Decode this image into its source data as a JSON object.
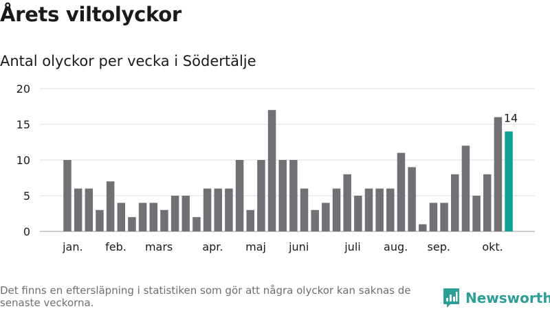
{
  "title": "Årets viltolyckor",
  "subtitle": "Antal olyckor per vecka i Södertälje",
  "footnote": "Det finns en eftersläpning i statistiken som gör att några olyckor kan saknas de senaste veckorna.",
  "brand": {
    "name": "Newsworthy",
    "icon": "newsworthy-logo-icon"
  },
  "colors": {
    "bar": "#737075",
    "highlight": "#0ea19a",
    "grid": "#dcdcdc",
    "brand": "#2b9e97",
    "text": "#1a1a1a"
  },
  "chart_data": {
    "type": "bar",
    "title": "Antal olyckor per vecka i Södertälje",
    "xlabel": "",
    "ylabel": "",
    "ylim": [
      0,
      20
    ],
    "yticks": [
      0,
      5,
      10,
      15,
      20
    ],
    "grid": true,
    "weeks": [
      1,
      2,
      3,
      4,
      5,
      6,
      7,
      8,
      9,
      10,
      11,
      12,
      13,
      14,
      15,
      16,
      17,
      18,
      19,
      20,
      21,
      22,
      23,
      24,
      25,
      26,
      27,
      28,
      29,
      30,
      31,
      32,
      33,
      34,
      35,
      36,
      37,
      38,
      39,
      40,
      41,
      42
    ],
    "values": [
      10,
      6,
      6,
      3,
      7,
      4,
      2,
      4,
      4,
      3,
      5,
      5,
      2,
      6,
      6,
      6,
      10,
      3,
      10,
      17,
      10,
      10,
      6,
      3,
      4,
      6,
      8,
      5,
      6,
      6,
      6,
      11,
      9,
      1,
      4,
      4,
      8,
      12,
      5,
      8,
      16,
      14
    ],
    "highlight_index": 41,
    "highlight_label": "14",
    "month_labels": [
      {
        "label": "jan.",
        "week": 1.5
      },
      {
        "label": "feb.",
        "week": 5.5
      },
      {
        "label": "mars",
        "week": 9.5
      },
      {
        "label": "apr.",
        "week": 14.5
      },
      {
        "label": "maj",
        "week": 18.5
      },
      {
        "label": "juni",
        "week": 22.5
      },
      {
        "label": "juli",
        "week": 27.5
      },
      {
        "label": "aug.",
        "week": 31.5
      },
      {
        "label": "sep.",
        "week": 35.5
      },
      {
        "label": "okt.",
        "week": 40.5
      }
    ]
  }
}
